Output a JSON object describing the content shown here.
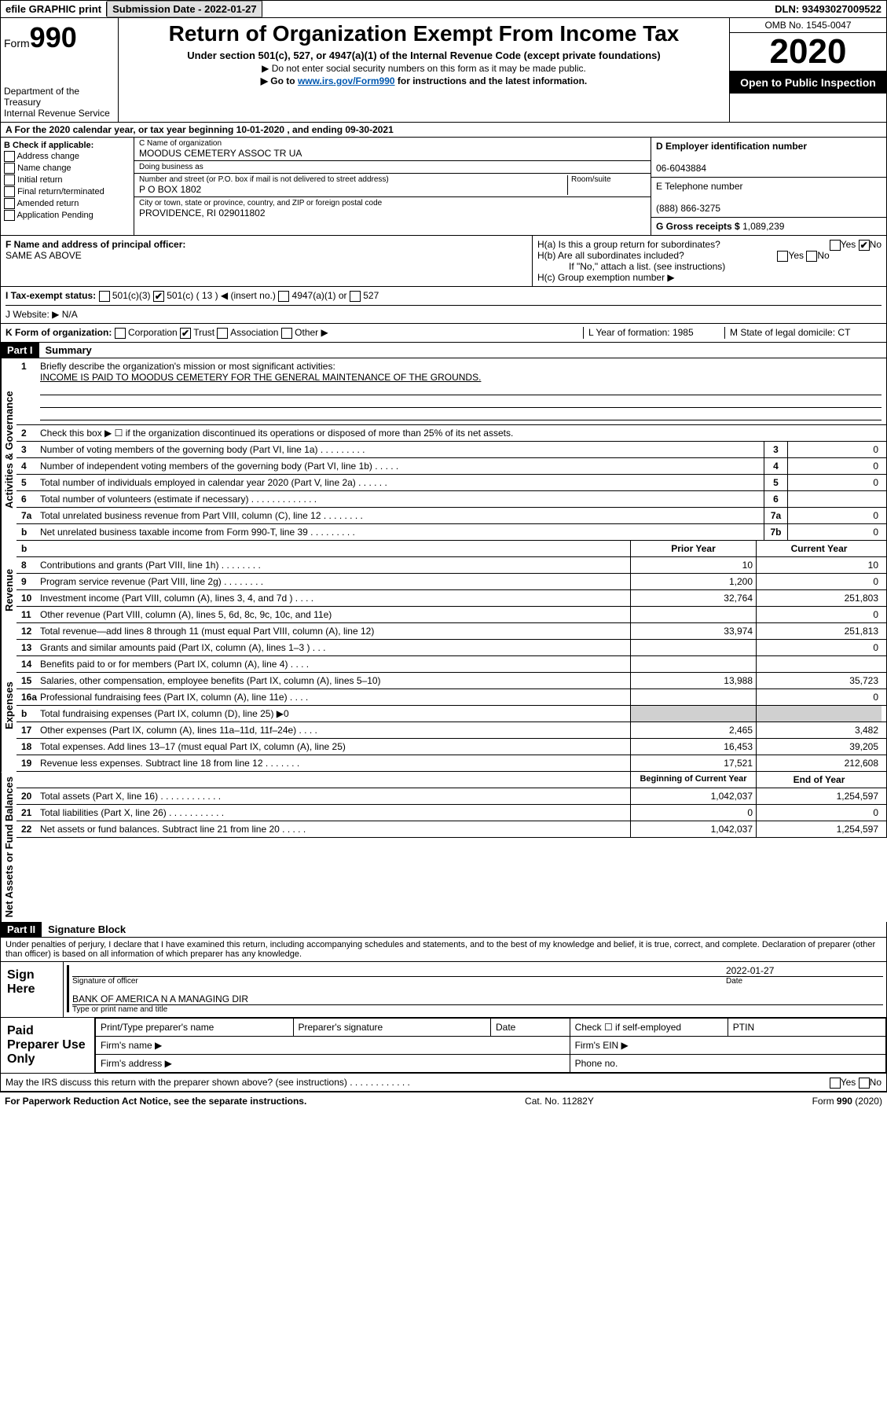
{
  "topbar": {
    "efile": "efile GRAPHIC print",
    "submission_label": "Submission Date - 2022-01-27",
    "dln": "DLN: 93493027009522"
  },
  "header": {
    "form_prefix": "Form",
    "form_number": "990",
    "dept": "Department of the Treasury",
    "irs": "Internal Revenue Service",
    "title": "Return of Organization Exempt From Income Tax",
    "subtitle": "Under section 501(c), 527, or 4947(a)(1) of the Internal Revenue Code (except private foundations)",
    "note1": "▶ Do not enter social security numbers on this form as it may be made public.",
    "note2_pre": "▶ Go to ",
    "note2_link": "www.irs.gov/Form990",
    "note2_post": " for instructions and the latest information.",
    "omb": "OMB No. 1545-0047",
    "year": "2020",
    "inspect": "Open to Public Inspection"
  },
  "row_a": "A For the 2020 calendar year, or tax year beginning 10-01-2020     , and ending 09-30-2021",
  "box_b": {
    "title": "B Check if applicable:",
    "opts": [
      "Address change",
      "Name change",
      "Initial return",
      "Final return/terminated",
      "Amended return",
      "Application Pending"
    ]
  },
  "box_c": {
    "name_lbl": "C Name of organization",
    "name": "MOODUS CEMETERY ASSOC TR UA",
    "dba_lbl": "Doing business as",
    "dba": "",
    "street_lbl": "Number and street (or P.O. box if mail is not delivered to street address)",
    "street": "P O BOX 1802",
    "room_lbl": "Room/suite",
    "city_lbl": "City or town, state or province, country, and ZIP or foreign postal code",
    "city": "PROVIDENCE, RI  029011802"
  },
  "box_d": {
    "ein_lbl": "D Employer identification number",
    "ein": "06-6043884",
    "phone_lbl": "E Telephone number",
    "phone": "(888) 866-3275",
    "gross_lbl": "G Gross receipts $",
    "gross": "1,089,239"
  },
  "box_f": {
    "lbl": "F Name and address of principal officer:",
    "val": "SAME AS ABOVE"
  },
  "box_h": {
    "ha": "H(a)  Is this a group return for subordinates?",
    "hb": "H(b)  Are all subordinates included?",
    "hb_note": "If \"No,\" attach a list. (see instructions)",
    "hc": "H(c)  Group exemption number ▶"
  },
  "row_i": {
    "lbl": "I    Tax-exempt status:",
    "opt1": "501(c)(3)",
    "opt2": "501(c) ( 13 ) ◀ (insert no.)",
    "opt3": "4947(a)(1) or",
    "opt4": "527"
  },
  "row_j": "J    Website: ▶  N/A",
  "row_k": {
    "lbl": "K Form of organization:",
    "opts": [
      "Corporation",
      "Trust",
      "Association",
      "Other ▶"
    ]
  },
  "row_l": "L Year of formation: 1985",
  "row_m": "M State of legal domicile: CT",
  "part1": {
    "hdr": "Part I",
    "title": "Summary",
    "q1": "Briefly describe the organization's mission or most significant activities:",
    "q1_ans": "INCOME IS PAID TO MOODUS CEMETERY FOR THE GENERAL MAINTENANCE OF THE GROUNDS.",
    "q2": "Check this box ▶ ☐  if the organization discontinued its operations or disposed of more than 25% of its net assets.",
    "lines_gov": [
      {
        "n": "3",
        "t": "Number of voting members of the governing body (Part VI, line 1a)  .   .   .   .   .   .   .   .   .",
        "rn": "3",
        "rv": "0"
      },
      {
        "n": "4",
        "t": "Number of independent voting members of the governing body (Part VI, line 1b)   .   .   .   .   .",
        "rn": "4",
        "rv": "0"
      },
      {
        "n": "5",
        "t": "Total number of individuals employed in calendar year 2020 (Part V, line 2a)   .   .   .   .   .   .",
        "rn": "5",
        "rv": "0"
      },
      {
        "n": "6",
        "t": "Total number of volunteers (estimate if necessary)   .   .   .   .   .   .   .   .   .   .   .   .   .",
        "rn": "6",
        "rv": ""
      },
      {
        "n": "7a",
        "t": "Total unrelated business revenue from Part VIII, column (C), line 12   .   .   .   .   .   .   .   .",
        "rn": "7a",
        "rv": "0"
      },
      {
        "n": "b",
        "t": "Net unrelated business taxable income from Form 990-T, line 39   .   .   .   .   .   .   .   .   .",
        "rn": "7b",
        "rv": "0"
      }
    ],
    "hdr_prior": "Prior Year",
    "hdr_current": "Current Year",
    "rev": [
      {
        "n": "8",
        "t": "Contributions and grants (Part VIII, line 1h)   .   .   .   .   .   .   .   .",
        "p": "10",
        "c": "10"
      },
      {
        "n": "9",
        "t": "Program service revenue (Part VIII, line 2g)   .   .   .   .   .   .   .   .",
        "p": "1,200",
        "c": "0"
      },
      {
        "n": "10",
        "t": "Investment income (Part VIII, column (A), lines 3, 4, and 7d )   .   .   .   .",
        "p": "32,764",
        "c": "251,803"
      },
      {
        "n": "11",
        "t": "Other revenue (Part VIII, column (A), lines 5, 6d, 8c, 9c, 10c, and 11e)",
        "p": "",
        "c": "0"
      },
      {
        "n": "12",
        "t": "Total revenue—add lines 8 through 11 (must equal Part VIII, column (A), line 12)",
        "p": "33,974",
        "c": "251,813"
      }
    ],
    "exp": [
      {
        "n": "13",
        "t": "Grants and similar amounts paid (Part IX, column (A), lines 1–3 )   .   .   .",
        "p": "",
        "c": "0"
      },
      {
        "n": "14",
        "t": "Benefits paid to or for members (Part IX, column (A), line 4)   .   .   .   .",
        "p": "",
        "c": ""
      },
      {
        "n": "15",
        "t": "Salaries, other compensation, employee benefits (Part IX, column (A), lines 5–10)",
        "p": "13,988",
        "c": "35,723"
      },
      {
        "n": "16a",
        "t": "Professional fundraising fees (Part IX, column (A), line 11e)   .   .   .   .",
        "p": "",
        "c": "0"
      },
      {
        "n": "b",
        "t": "Total fundraising expenses (Part IX, column (D), line 25) ▶0",
        "p": "shade",
        "c": "shade"
      },
      {
        "n": "17",
        "t": "Other expenses (Part IX, column (A), lines 11a–11d, 11f–24e)   .   .   .   .",
        "p": "2,465",
        "c": "3,482"
      },
      {
        "n": "18",
        "t": "Total expenses. Add lines 13–17 (must equal Part IX, column (A), line 25)",
        "p": "16,453",
        "c": "39,205"
      },
      {
        "n": "19",
        "t": "Revenue less expenses. Subtract line 18 from line 12   .   .   .   .   .   .   .",
        "p": "17,521",
        "c": "212,608"
      }
    ],
    "hdr_begin": "Beginning of Current Year",
    "hdr_end": "End of Year",
    "net": [
      {
        "n": "20",
        "t": "Total assets (Part X, line 16)   .   .   .   .   .   .   .   .   .   .   .   .",
        "p": "1,042,037",
        "c": "1,254,597"
      },
      {
        "n": "21",
        "t": "Total liabilities (Part X, line 26)   .   .   .   .   .   .   .   .   .   .   .",
        "p": "0",
        "c": "0"
      },
      {
        "n": "22",
        "t": "Net assets or fund balances. Subtract line 21 from line 20   .   .   .   .   .",
        "p": "1,042,037",
        "c": "1,254,597"
      }
    ]
  },
  "part2": {
    "hdr": "Part II",
    "title": "Signature Block",
    "perjury": "Under penalties of perjury, I declare that I have examined this return, including accompanying schedules and statements, and to the best of my knowledge and belief, it is true, correct, and complete. Declaration of preparer (other than officer) is based on all information of which preparer has any knowledge.",
    "sign_here": "Sign Here",
    "sig_officer": "Signature of officer",
    "sig_date": "2022-01-27",
    "sig_date_lbl": "Date",
    "sig_name": "BANK OF AMERICA N A  MANAGING DIR",
    "sig_name_lbl": "Type or print name and title",
    "paid": "Paid Preparer Use Only",
    "prep_name": "Print/Type preparer's name",
    "prep_sig": "Preparer's signature",
    "prep_date": "Date",
    "prep_check": "Check ☐ if self-employed",
    "ptin": "PTIN",
    "firm_name": "Firm's name   ▶",
    "firm_ein": "Firm's EIN ▶",
    "firm_addr": "Firm's address ▶",
    "firm_phone": "Phone no."
  },
  "discuss": "May the IRS discuss this return with the preparer shown above? (see instructions)   .   .   .   .   .   .   .   .   .   .   .   .",
  "footer": {
    "left": "For Paperwork Reduction Act Notice, see the separate instructions.",
    "mid": "Cat. No. 11282Y",
    "right": "Form 990 (2020)"
  },
  "vlabels": {
    "gov": "Activities & Governance",
    "rev": "Revenue",
    "exp": "Expenses",
    "net": "Net Assets or Fund Balances"
  },
  "yes": "Yes",
  "no": "No"
}
